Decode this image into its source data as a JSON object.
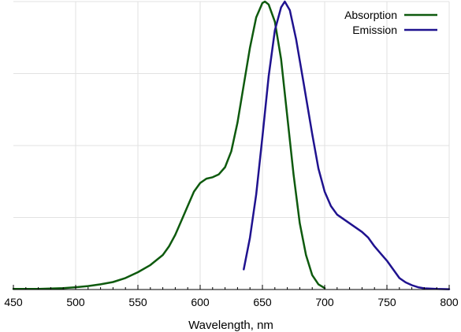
{
  "chart_data": {
    "type": "line",
    "title": "",
    "xlabel": "Wavelength, nm",
    "ylabel": "",
    "xlim": [
      450,
      800
    ],
    "ylim": [
      0,
      1
    ],
    "x_ticks": [
      450,
      500,
      550,
      600,
      650,
      700,
      750,
      800
    ],
    "grid": true,
    "legend_position": "top-right",
    "series": [
      {
        "name": "Absorption",
        "color": "#0e5a0e",
        "points": [
          [
            450,
            0.002
          ],
          [
            470,
            0.002
          ],
          [
            490,
            0.005
          ],
          [
            500,
            0.008
          ],
          [
            510,
            0.012
          ],
          [
            520,
            0.018
          ],
          [
            530,
            0.026
          ],
          [
            540,
            0.04
          ],
          [
            550,
            0.06
          ],
          [
            560,
            0.085
          ],
          [
            570,
            0.12
          ],
          [
            575,
            0.15
          ],
          [
            580,
            0.19
          ],
          [
            585,
            0.24
          ],
          [
            590,
            0.29
          ],
          [
            595,
            0.34
          ],
          [
            600,
            0.37
          ],
          [
            605,
            0.385
          ],
          [
            610,
            0.39
          ],
          [
            615,
            0.4
          ],
          [
            620,
            0.425
          ],
          [
            625,
            0.48
          ],
          [
            630,
            0.58
          ],
          [
            635,
            0.71
          ],
          [
            640,
            0.84
          ],
          [
            645,
            0.945
          ],
          [
            650,
            0.995
          ],
          [
            652,
            1.0
          ],
          [
            655,
            0.99
          ],
          [
            660,
            0.93
          ],
          [
            665,
            0.8
          ],
          [
            670,
            0.6
          ],
          [
            675,
            0.4
          ],
          [
            680,
            0.23
          ],
          [
            685,
            0.12
          ],
          [
            690,
            0.05
          ],
          [
            695,
            0.018
          ],
          [
            700,
            0.005
          ]
        ]
      },
      {
        "name": "Emission",
        "color": "#1f128f",
        "points": [
          [
            635,
            0.07
          ],
          [
            640,
            0.18
          ],
          [
            645,
            0.33
          ],
          [
            650,
            0.53
          ],
          [
            655,
            0.74
          ],
          [
            660,
            0.9
          ],
          [
            665,
            0.98
          ],
          [
            668,
            1.0
          ],
          [
            672,
            0.97
          ],
          [
            677,
            0.87
          ],
          [
            683,
            0.72
          ],
          [
            690,
            0.54
          ],
          [
            695,
            0.42
          ],
          [
            700,
            0.34
          ],
          [
            705,
            0.29
          ],
          [
            710,
            0.26
          ],
          [
            715,
            0.245
          ],
          [
            720,
            0.23
          ],
          [
            725,
            0.215
          ],
          [
            730,
            0.2
          ],
          [
            735,
            0.18
          ],
          [
            740,
            0.15
          ],
          [
            745,
            0.125
          ],
          [
            750,
            0.1
          ],
          [
            755,
            0.07
          ],
          [
            760,
            0.04
          ],
          [
            765,
            0.025
          ],
          [
            770,
            0.015
          ],
          [
            775,
            0.008
          ],
          [
            780,
            0.004
          ],
          [
            790,
            0.002
          ],
          [
            800,
            0.001
          ]
        ]
      }
    ]
  }
}
